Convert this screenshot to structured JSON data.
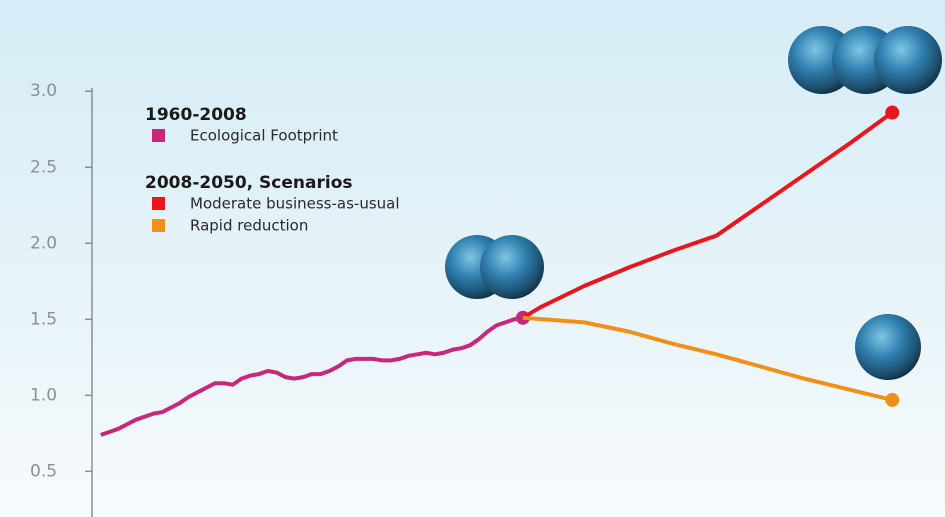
{
  "chart_data": {
    "type": "line",
    "legend_groups": [
      "1960-2008",
      "2008-2050, Scenarios"
    ],
    "xlim": [
      1959,
      2056
    ],
    "ylim": [
      0.2,
      3.6
    ],
    "yticks": [
      {
        "value": 3,
        "label": "3.0"
      },
      2.5,
      {
        "value": 2,
        "label": "2.0"
      },
      1.5,
      {
        "value": 1,
        "label": "1.0"
      },
      0.5
    ],
    "series": [
      {
        "name": "Ecological Footprint",
        "color": "#c8287a",
        "x": [
          1960,
          1961,
          1962,
          1963,
          1964,
          1965,
          1966,
          1967,
          1968,
          1969,
          1970,
          1971,
          1972,
          1973,
          1974,
          1975,
          1976,
          1977,
          1978,
          1979,
          1980,
          1981,
          1982,
          1983,
          1984,
          1985,
          1986,
          1987,
          1988,
          1989,
          1990,
          1991,
          1992,
          1993,
          1994,
          1995,
          1996,
          1997,
          1998,
          1999,
          2000,
          2001,
          2002,
          2003,
          2004,
          2005,
          2006,
          2007,
          2008
        ],
        "values": [
          0.74,
          0.76,
          0.78,
          0.81,
          0.84,
          0.86,
          0.88,
          0.89,
          0.92,
          0.95,
          0.99,
          1.02,
          1.05,
          1.08,
          1.08,
          1.07,
          1.11,
          1.13,
          1.14,
          1.16,
          1.15,
          1.12,
          1.11,
          1.12,
          1.14,
          1.14,
          1.16,
          1.19,
          1.23,
          1.24,
          1.24,
          1.24,
          1.23,
          1.23,
          1.24,
          1.26,
          1.27,
          1.28,
          1.27,
          1.28,
          1.3,
          1.31,
          1.33,
          1.37,
          1.42,
          1.46,
          1.48,
          1.5,
          1.51
        ]
      },
      {
        "name": "Moderate business-as-usual",
        "color": "#e8161e",
        "x": [
          2008,
          2010,
          2015,
          2020,
          2025,
          2030,
          2035,
          2040,
          2045,
          2050
        ],
        "values": [
          1.51,
          1.58,
          1.72,
          1.84,
          1.95,
          2.05,
          2.25,
          2.45,
          2.65,
          2.86
        ]
      },
      {
        "name": "Rapid reduction",
        "color": "#f0901a",
        "x": [
          2008,
          2015,
          2020,
          2025,
          2030,
          2035,
          2040,
          2045,
          2050
        ],
        "values": [
          1.51,
          1.48,
          1.42,
          1.34,
          1.27,
          1.19,
          1.11,
          1.04,
          0.97
        ]
      }
    ]
  }
}
